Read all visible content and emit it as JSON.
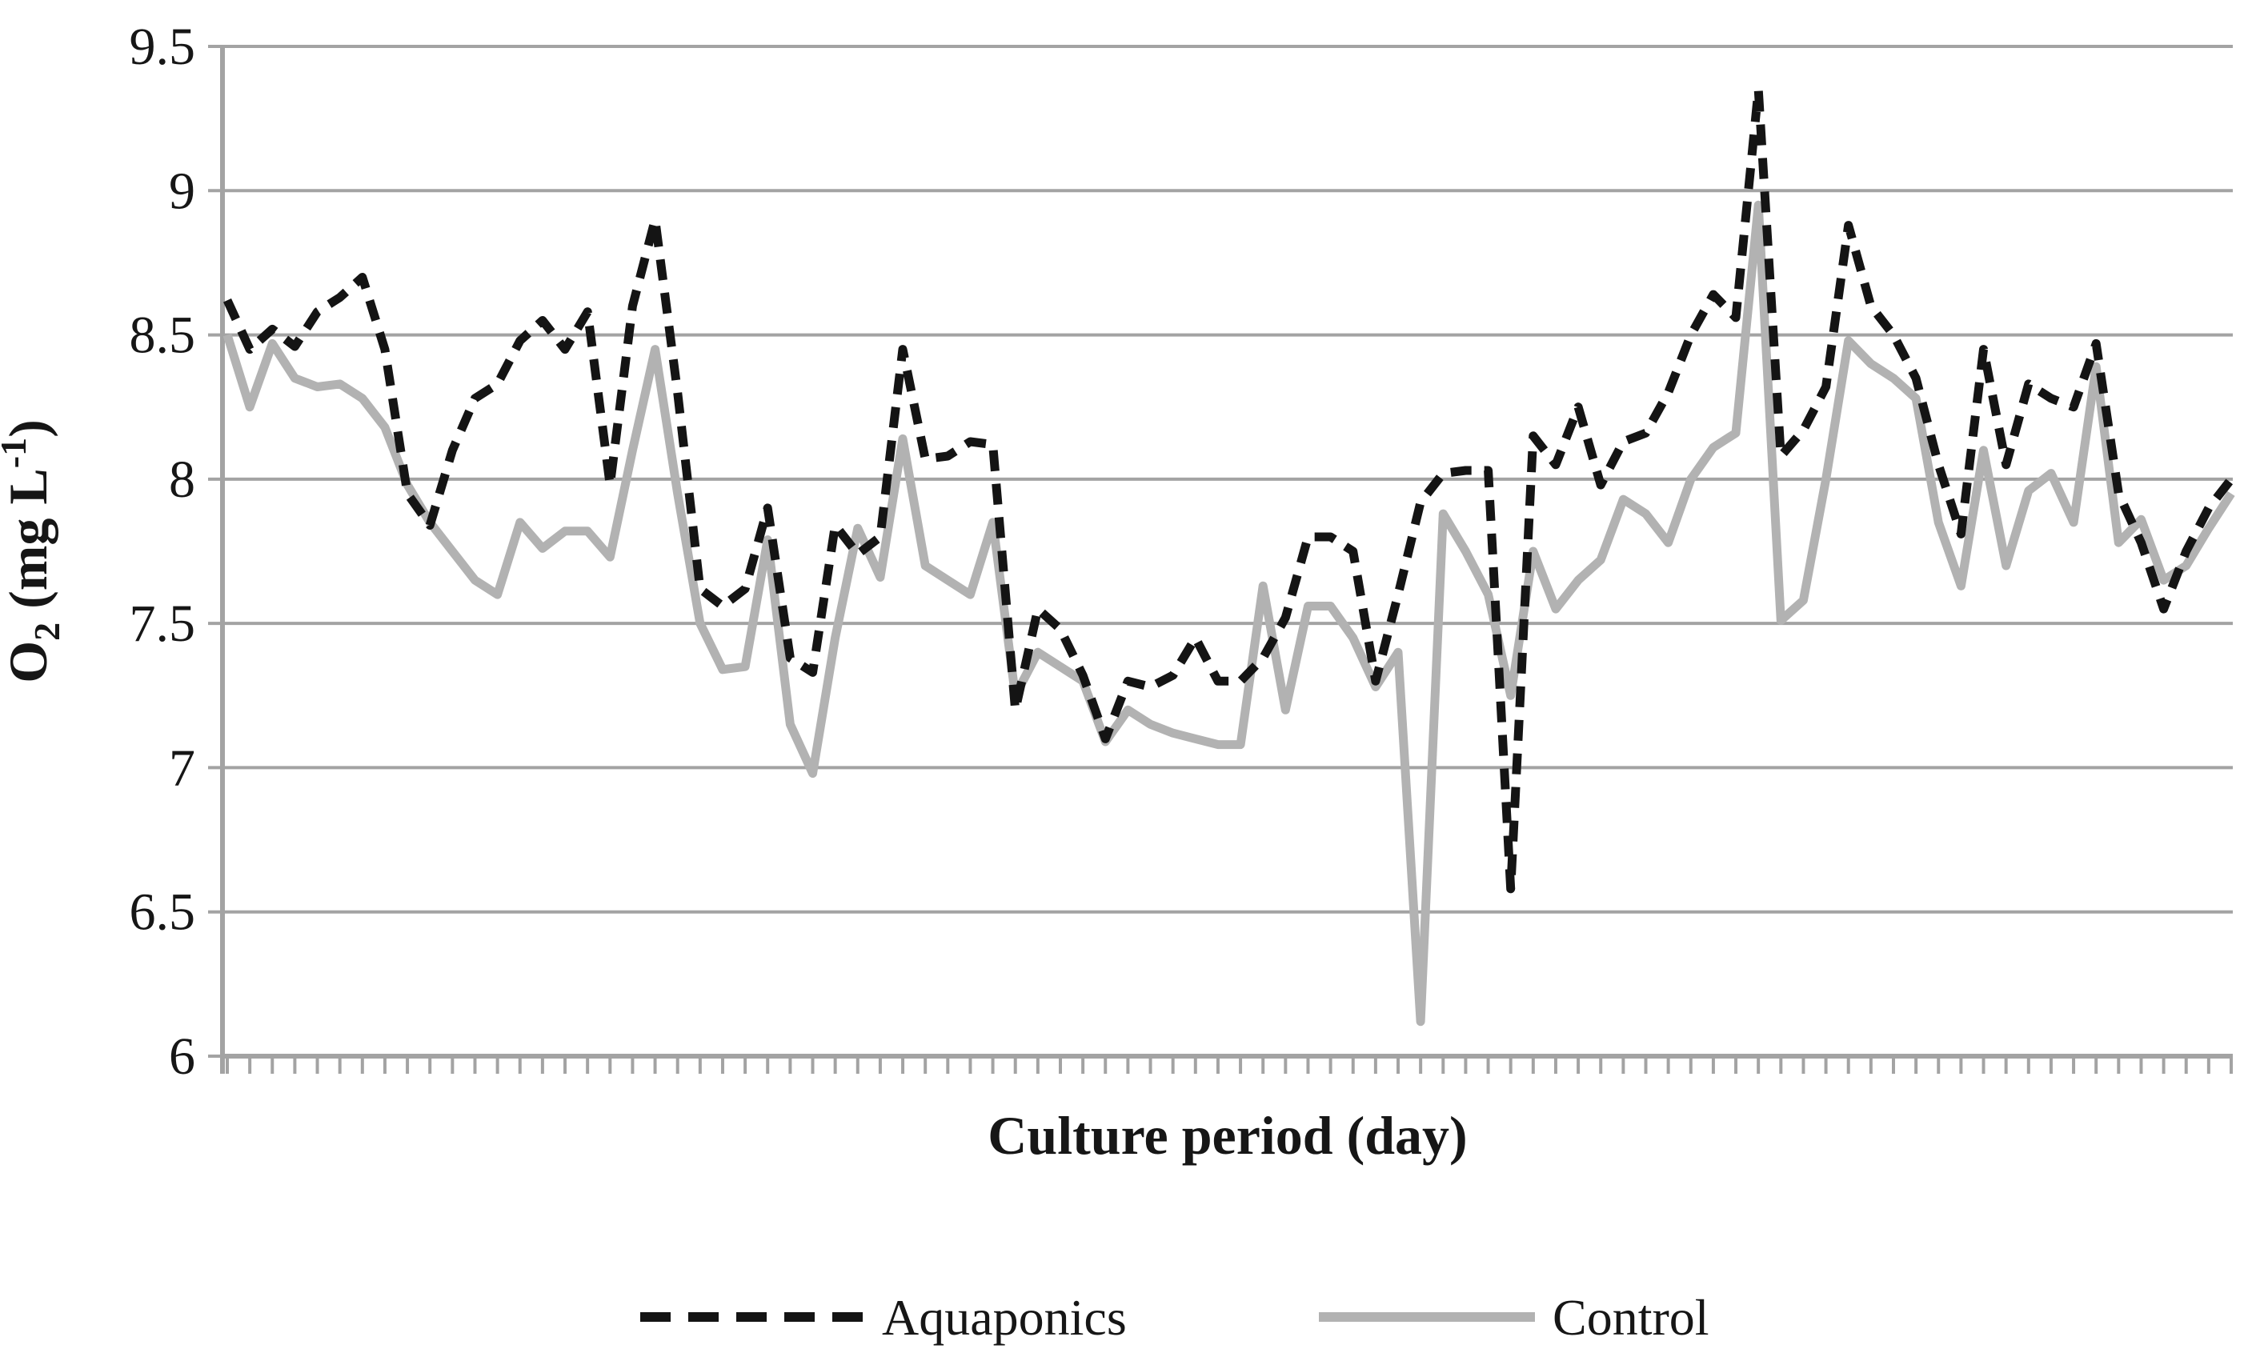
{
  "chart_data": {
    "type": "line",
    "title": "",
    "xlabel": "Culture period (day)",
    "ylabel_text": "O2 (mg L-1)",
    "ylabel_parts": {
      "base": "O",
      "sub": "2",
      "mid": " (mg L",
      "sup": "-1",
      "end": ")"
    },
    "n_points": 90,
    "x_day_range": [
      1,
      90
    ],
    "ylim": [
      6,
      9.5
    ],
    "grid": true,
    "grid_color": "#a3a3a3",
    "background_color": "#ffffff",
    "yticks": [
      {
        "value": 9.5,
        "label": "9.5"
      },
      {
        "value": 9.0,
        "label": "9"
      },
      {
        "value": 8.5,
        "label": "8.5"
      },
      {
        "value": 8.0,
        "label": "8"
      },
      {
        "value": 7.5,
        "label": "7.5"
      },
      {
        "value": 7.0,
        "label": "7"
      },
      {
        "value": 6.5,
        "label": "6.5"
      },
      {
        "value": 6.0,
        "label": "6"
      }
    ],
    "legend_position": "bottom-center",
    "series": [
      {
        "name": "Aquaponics",
        "style": "dashed",
        "color": "#141414",
        "values": [
          8.62,
          8.45,
          8.52,
          8.46,
          8.58,
          8.63,
          8.7,
          8.45,
          7.95,
          7.84,
          8.1,
          8.28,
          8.33,
          8.48,
          8.55,
          8.45,
          8.58,
          7.98,
          8.6,
          8.9,
          8.3,
          7.62,
          7.56,
          7.62,
          7.9,
          7.38,
          7.33,
          7.84,
          7.74,
          7.8,
          8.45,
          8.07,
          8.08,
          8.13,
          8.12,
          7.2,
          7.55,
          7.48,
          7.32,
          7.1,
          7.3,
          7.28,
          7.32,
          7.45,
          7.3,
          7.3,
          7.38,
          7.52,
          7.8,
          7.8,
          7.75,
          7.3,
          7.6,
          7.92,
          8.02,
          8.03,
          8.03,
          6.58,
          8.15,
          8.05,
          8.25,
          7.98,
          8.13,
          8.16,
          8.3,
          8.5,
          8.64,
          8.56,
          9.35,
          8.08,
          8.17,
          8.32,
          8.88,
          8.6,
          8.5,
          8.35,
          8.05,
          7.81,
          8.45,
          8.05,
          8.33,
          8.28,
          8.25,
          8.47,
          7.95,
          7.78,
          7.55,
          7.75,
          7.9,
          8.0
        ]
      },
      {
        "name": "Control",
        "style": "solid",
        "color": "#b2b2b2",
        "values": [
          8.5,
          8.25,
          8.47,
          8.35,
          8.32,
          8.33,
          8.28,
          8.18,
          7.98,
          7.85,
          7.75,
          7.65,
          7.6,
          7.85,
          7.76,
          7.82,
          7.82,
          7.73,
          8.1,
          8.45,
          7.95,
          7.5,
          7.34,
          7.35,
          7.79,
          7.15,
          6.98,
          7.45,
          7.83,
          7.66,
          8.14,
          7.7,
          7.65,
          7.6,
          7.85,
          7.25,
          7.4,
          7.35,
          7.3,
          7.09,
          7.2,
          7.15,
          7.12,
          7.1,
          7.08,
          7.08,
          7.63,
          7.2,
          7.56,
          7.56,
          7.45,
          7.28,
          7.4,
          6.12,
          7.88,
          7.75,
          7.6,
          7.25,
          7.75,
          7.55,
          7.65,
          7.72,
          7.93,
          7.88,
          7.78,
          8.0,
          8.11,
          8.16,
          8.95,
          7.51,
          7.58,
          8.0,
          8.48,
          8.4,
          8.35,
          8.28,
          7.85,
          7.63,
          8.1,
          7.7,
          7.96,
          8.02,
          7.85,
          8.39,
          7.78,
          7.86,
          7.65,
          7.7,
          7.83,
          7.95
        ]
      }
    ],
    "legend": [
      {
        "label": "Aquaponics"
      },
      {
        "label": "Control"
      }
    ]
  }
}
